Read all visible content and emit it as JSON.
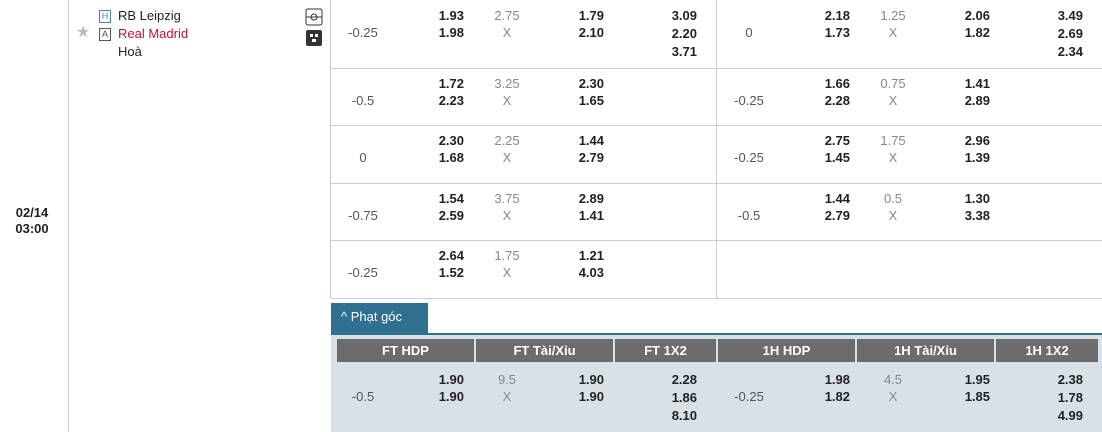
{
  "match": {
    "date": "02/14",
    "time": "03:00",
    "home_tag": "H",
    "home": "RB Leipzig",
    "away_tag": "A",
    "away": "Real Madrid",
    "draw": "Hoà"
  },
  "draw_symbol": "X",
  "rows": [
    {
      "ft": {
        "hdp": "-0.25",
        "home": "1.93",
        "away": "1.98",
        "ou": "2.75",
        "over": "1.79",
        "under": "2.10",
        "x12": [
          "3.09",
          "2.20",
          "3.71"
        ]
      },
      "h1": {
        "hdp": "0",
        "home": "2.18",
        "away": "1.73",
        "ou": "1.25",
        "over": "2.06",
        "under": "1.82",
        "x12": [
          "3.49",
          "2.69",
          "2.34"
        ]
      }
    },
    {
      "ft": {
        "hdp": "-0.5",
        "home": "1.72",
        "away": "2.23",
        "ou": "3.25",
        "over": "2.30",
        "under": "1.65"
      },
      "h1": {
        "hdp": "-0.25",
        "home": "1.66",
        "away": "2.28",
        "ou": "0.75",
        "over": "1.41",
        "under": "2.89"
      }
    },
    {
      "ft": {
        "hdp": "0",
        "home": "2.30",
        "away": "1.68",
        "ou": "2.25",
        "over": "1.44",
        "under": "2.79"
      },
      "h1": {
        "hdp": "-0.25",
        "home": "2.75",
        "away": "1.45",
        "ou": "1.75",
        "over": "2.96",
        "under": "1.39"
      }
    },
    {
      "ft": {
        "hdp": "-0.75",
        "home": "1.54",
        "away": "2.59",
        "ou": "3.75",
        "over": "2.89",
        "under": "1.41"
      },
      "h1": {
        "hdp": "-0.5",
        "home": "1.44",
        "away": "2.79",
        "ou": "0.5",
        "over": "1.30",
        "under": "3.38"
      }
    },
    {
      "ft": {
        "hdp": "-0.25",
        "home": "2.64",
        "away": "1.52",
        "ou": "1.75",
        "over": "1.21",
        "under": "4.03"
      }
    }
  ],
  "corner": {
    "tab": "Phạt góc",
    "headers": [
      "FT HDP",
      "FT Tài/Xỉu",
      "FT 1X2",
      "1H HDP",
      "1H Tài/Xỉu",
      "1H 1X2"
    ],
    "row": {
      "ft": {
        "hdp": "-0.5",
        "home": "1.90",
        "away": "1.90",
        "ou": "9.5",
        "over": "1.90",
        "under": "1.90",
        "x12": [
          "2.28",
          "1.86",
          "8.10"
        ]
      },
      "h1": {
        "hdp": "-0.25",
        "home": "1.98",
        "away": "1.82",
        "ou": "4.5",
        "over": "1.95",
        "under": "1.85",
        "x12": [
          "2.38",
          "1.78",
          "4.99"
        ]
      }
    }
  }
}
